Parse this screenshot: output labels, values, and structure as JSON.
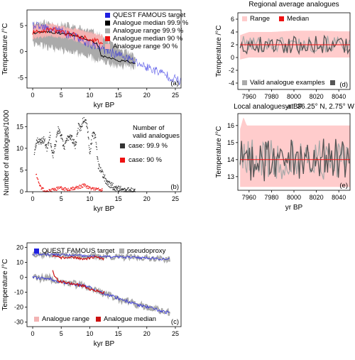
{
  "chart_data": [
    {
      "id": "a",
      "type": "line",
      "panel_label": "(a)",
      "xlabel": "kyr BP",
      "ylabel": "Temperature /°C",
      "xlim": [
        -1,
        26
      ],
      "ylim": [
        -7,
        8
      ],
      "xticks": [
        0,
        5,
        10,
        15,
        20,
        25
      ],
      "yticks": [
        -5,
        0,
        5
      ],
      "legend": [
        "QUEST FAMOUS target",
        "Analogue median 99.9 %",
        "Analogue range 99.9 %",
        "Analogue median 90 %",
        "Analogue range 90 %"
      ],
      "colors": {
        "target": "#2020e0",
        "median999": "#000000",
        "range999": "#aaaaaa",
        "median90": "#ee1111",
        "range90": "#f3b3b3"
      },
      "target": {
        "x": [
          0,
          2,
          4,
          6,
          8,
          10,
          12,
          14,
          16,
          18,
          20,
          22,
          24,
          26
        ],
        "y": [
          5,
          4.5,
          4.2,
          3.5,
          2.5,
          1.5,
          0.5,
          -0.2,
          -1,
          -2,
          -3,
          -3.8,
          -4.8,
          -5.8
        ]
      },
      "median999": {
        "x": [
          0,
          2,
          4,
          6,
          8,
          10,
          11.5,
          12,
          14,
          16,
          18
        ],
        "y": [
          3.5,
          3.8,
          3.6,
          3.4,
          3,
          2.2,
          1.3,
          -0.8,
          -1.4,
          -1.9,
          -2.1
        ]
      },
      "range999": {
        "x": [
          0,
          2,
          4,
          6,
          8,
          10,
          12,
          14,
          16,
          18
        ],
        "upper": [
          5.5,
          5.5,
          5.3,
          5,
          4.5,
          4,
          3,
          1.5,
          0,
          -1.2
        ],
        "lower": [
          1.5,
          1,
          0.5,
          0,
          -0.5,
          -1,
          -2,
          -2.5,
          -2.8,
          -3
        ]
      },
      "median90": {
        "x": [
          0,
          2,
          3.5,
          5,
          7,
          9,
          10.5,
          12.3
        ],
        "y": [
          3.6,
          3.9,
          4.3,
          3.6,
          3.4,
          2.6,
          2.2,
          1.6
        ]
      }
    },
    {
      "id": "b",
      "type": "scatter",
      "panel_label": "(b)",
      "xlabel": "kyr BP",
      "ylabel": "Number of analogues/1000",
      "xlim": [
        -1,
        26
      ],
      "ylim": [
        0,
        18
      ],
      "xticks": [
        0,
        5,
        10,
        15,
        20,
        25
      ],
      "yticks": [
        0,
        5,
        10,
        15
      ],
      "legend_title": "Number of valid analogues",
      "legend": [
        "case: 99.9 %",
        "case: 90 %"
      ],
      "colors": {
        "case999": "#333333",
        "case90": "#ee1111"
      },
      "case999": {
        "x": [
          0.3,
          0.8,
          1.3,
          2,
          2.5,
          3,
          3.5,
          4,
          4.5,
          5,
          5.5,
          6,
          6.5,
          7,
          7.5,
          8,
          8.5,
          8.8,
          9.2,
          9.6,
          10,
          10.5,
          11,
          11.5,
          12,
          12.5,
          13,
          14,
          15,
          16,
          17,
          18
        ],
        "y": [
          9,
          12,
          11.5,
          12,
          10,
          13,
          8,
          11,
          14.5,
          13,
          10,
          12,
          13,
          12,
          10.5,
          15,
          14.5,
          16.5,
          17,
          15,
          9,
          13,
          13,
          6,
          5,
          3.5,
          2,
          1.3,
          0.7,
          0.3,
          0.2,
          0.1
        ]
      },
      "case90": {
        "x": [
          0.6,
          0.9,
          1.1,
          1.4,
          2,
          3,
          4,
          5,
          6,
          7,
          8,
          9,
          10,
          11,
          12
        ],
        "y": [
          4,
          3,
          2,
          1,
          0.3,
          0.2,
          0.6,
          0.8,
          0.5,
          0.8,
          1,
          1.5,
          0.8,
          0.6,
          0.4
        ]
      }
    },
    {
      "id": "c",
      "type": "line",
      "panel_label": "(c)",
      "xlabel": "kyr BP",
      "ylabel": "Temperature /°C",
      "xlim": [
        -1,
        26
      ],
      "ylim": [
        -33,
        23
      ],
      "xticks": [
        0,
        5,
        10,
        15,
        20,
        25
      ],
      "yticks": [
        -30,
        -20,
        -10,
        0,
        10,
        20
      ],
      "legend": [
        "QUEST FAMOUS target",
        "pseudoproxy",
        "Analogue range",
        "Analogue median"
      ],
      "colors": {
        "target": "#2020e0",
        "pseudo": "#aaaaaa",
        "range": "#f3b3b3",
        "median": "#cc1111"
      },
      "upper_target": {
        "x": [
          0,
          5,
          10,
          15,
          20,
          24
        ],
        "y": [
          15.5,
          15,
          14,
          13.5,
          13,
          12
        ]
      },
      "lower_target": {
        "x": [
          0,
          3,
          5,
          8,
          10,
          12,
          15,
          18,
          20,
          22,
          24
        ],
        "y": [
          0,
          -1,
          -3,
          -5,
          -7,
          -10,
          -14,
          -18,
          -20,
          -22,
          -24
        ]
      },
      "upper_median": {
        "x": [
          3.5,
          5,
          7,
          9,
          11,
          12.5
        ],
        "y": [
          14,
          13,
          13.5,
          12,
          13.5,
          12
        ]
      },
      "lower_median": {
        "x": [
          3.5,
          4,
          5,
          7,
          9,
          10,
          12,
          12.5
        ],
        "y": [
          4,
          -1,
          -3,
          -4,
          -6,
          -8,
          -10,
          -10
        ]
      }
    },
    {
      "id": "d",
      "type": "line",
      "title": "Regional average analogues",
      "panel_label": "(d)",
      "xlabel": "yr BP",
      "ylabel": "Temperature /°C",
      "xlim": [
        7950,
        8050
      ],
      "ylim": [
        -5,
        7
      ],
      "xticks": [
        7960,
        7980,
        8000,
        8020,
        8040
      ],
      "yticks": [
        -4,
        -2,
        0,
        2,
        4,
        6
      ],
      "legend": [
        "Range",
        "Median",
        "Valid analogue examples"
      ],
      "colors": {
        "range": "#ffcccc",
        "median": "#ee1111",
        "valid_light": "#aaaaaa",
        "valid_dark": "#555555"
      },
      "range": {
        "x": [
          7952,
          7960,
          7980,
          8000,
          8020,
          8040,
          8050
        ],
        "upper": [
          3.5,
          4,
          4,
          4.2,
          4.2,
          4.1,
          4.1
        ],
        "lower": [
          -0.3,
          0,
          0,
          0,
          0,
          0,
          0
        ]
      },
      "median": {
        "x": [
          7952,
          8050
        ],
        "y": [
          2,
          2
        ]
      }
    },
    {
      "id": "e",
      "type": "line",
      "title": "Local analogues at: 36.25° N, 2.75° W",
      "panel_label": "(e)",
      "xlabel": "yr BP",
      "ylabel": "Temperature /°C",
      "xlim": [
        7950,
        8050
      ],
      "ylim": [
        12.2,
        16.7
      ],
      "xticks": [
        7960,
        7980,
        8000,
        8020,
        8040
      ],
      "yticks": [
        13,
        14,
        15,
        16
      ],
      "colors": {
        "range": "#ffcccc",
        "median": "#ee1111",
        "valid_light": "#aaaaaa",
        "valid_dark": "#555555"
      },
      "range": {
        "x": [
          7952,
          7955,
          7958,
          8000,
          8050
        ],
        "upper": [
          15.8,
          16.5,
          16,
          16,
          16
        ],
        "lower": [
          12.4,
          12.4,
          12.4,
          12.4,
          12.4
        ]
      },
      "median": {
        "x": [
          7952,
          8050
        ],
        "y": [
          14,
          14
        ]
      }
    }
  ]
}
